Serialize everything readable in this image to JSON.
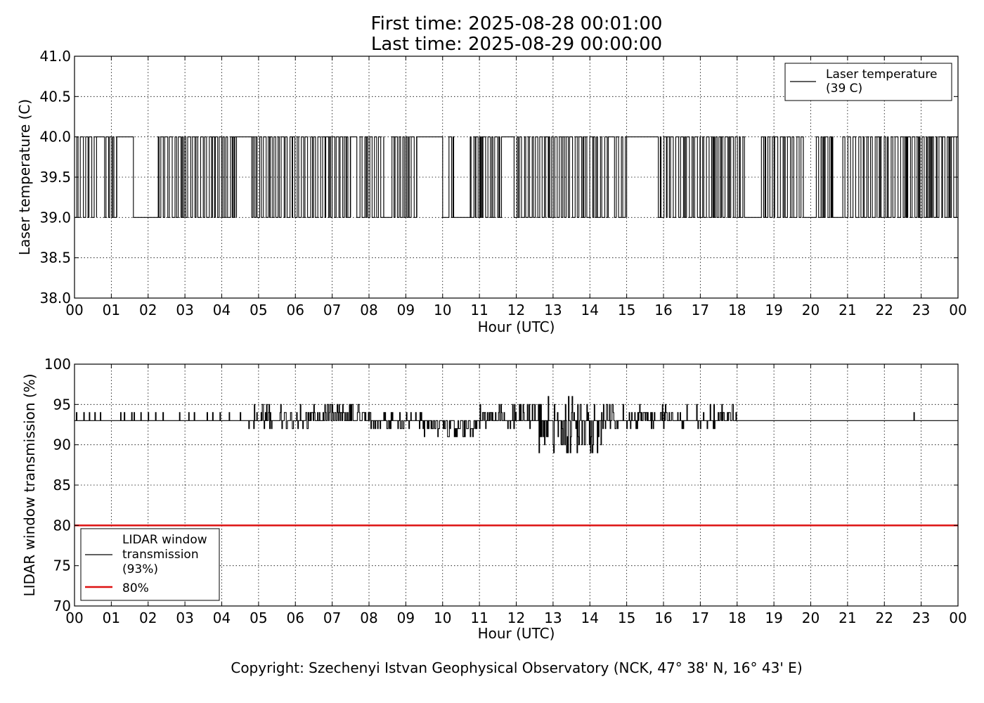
{
  "header": {
    "first_time": "First time: 2025-08-28 00:01:00",
    "last_time": "Last time: 2025-08-29 00:00:00"
  },
  "footer": {
    "copyright": "Copyright: Szechenyi Istvan Geophysical Observatory (NCK, 47° 38' N, 16° 43' E)"
  },
  "colors": {
    "series_line": "#000000",
    "threshold_line": "#dd1111",
    "grid": "#000000"
  },
  "chart_data": [
    {
      "type": "line",
      "xlabel": "Hour (UTC)",
      "ylabel": "Laser temperature (C)",
      "xlim": [
        0,
        24
      ],
      "ylim": [
        38.0,
        41.0
      ],
      "x_ticks": [
        0,
        1,
        2,
        3,
        4,
        5,
        6,
        7,
        8,
        9,
        10,
        11,
        12,
        13,
        14,
        15,
        16,
        17,
        18,
        19,
        20,
        21,
        22,
        23,
        24
      ],
      "x_tick_labels": [
        "00",
        "01",
        "02",
        "03",
        "04",
        "05",
        "06",
        "07",
        "08",
        "09",
        "10",
        "11",
        "12",
        "13",
        "14",
        "15",
        "16",
        "17",
        "18",
        "19",
        "20",
        "21",
        "22",
        "23",
        "00"
      ],
      "y_ticks": [
        38.0,
        38.5,
        39.0,
        39.5,
        40.0,
        40.5,
        41.0
      ],
      "y_tick_labels": [
        "38.0",
        "38.5",
        "39.0",
        "39.5",
        "40.0",
        "40.5",
        "41.0"
      ],
      "grid": true,
      "legend_position": "top-right",
      "series": [
        {
          "name": "Laser temperature (39 C)",
          "legend_lines": [
            "Laser temperature",
            "(39 C)"
          ],
          "levels": [
            39,
            40
          ],
          "dense_toggle_intervals": [
            [
              0.0,
              0.6
            ],
            [
              0.75,
              1.15
            ],
            [
              2.2,
              2.45
            ],
            [
              2.5,
              4.4
            ],
            [
              4.8,
              5.3
            ],
            [
              5.3,
              7.0
            ],
            [
              7.0,
              7.5
            ],
            [
              7.6,
              8.4
            ],
            [
              8.6,
              9.3
            ],
            [
              10.1,
              10.3
            ],
            [
              10.7,
              11.6
            ],
            [
              11.9,
              12.8
            ],
            [
              12.8,
              13.6
            ],
            [
              13.6,
              14.5
            ],
            [
              14.6,
              15.0
            ],
            [
              15.8,
              17.0
            ],
            [
              17.0,
              18.2
            ],
            [
              18.6,
              19.8
            ],
            [
              20.1,
              20.6
            ],
            [
              20.8,
              21.8
            ],
            [
              21.8,
              22.6
            ],
            [
              22.6,
              24.0
            ]
          ],
          "plateaus_at_40": [
            [
              0.6,
              0.75
            ],
            [
              1.15,
              1.6
            ],
            [
              4.4,
              4.8
            ],
            [
              7.5,
              7.6
            ],
            [
              9.3,
              10.0
            ],
            [
              11.6,
              11.9
            ],
            [
              15.0,
              15.8
            ]
          ],
          "plateaus_at_39": [
            [
              1.6,
              2.2
            ],
            [
              8.4,
              8.6
            ],
            [
              10.0,
              10.1
            ],
            [
              18.2,
              18.6
            ],
            [
              19.8,
              20.1
            ],
            [
              20.6,
              20.8
            ]
          ]
        }
      ]
    },
    {
      "type": "line",
      "xlabel": "Hour (UTC)",
      "ylabel": "LIDAR window transmission (%)",
      "xlim": [
        0,
        24
      ],
      "ylim": [
        70,
        100
      ],
      "x_ticks": [
        0,
        1,
        2,
        3,
        4,
        5,
        6,
        7,
        8,
        9,
        10,
        11,
        12,
        13,
        14,
        15,
        16,
        17,
        18,
        19,
        20,
        21,
        22,
        23,
        24
      ],
      "x_tick_labels": [
        "00",
        "01",
        "02",
        "03",
        "04",
        "05",
        "06",
        "07",
        "08",
        "09",
        "10",
        "11",
        "12",
        "13",
        "14",
        "15",
        "16",
        "17",
        "18",
        "19",
        "20",
        "21",
        "22",
        "23",
        "00"
      ],
      "y_ticks": [
        70,
        75,
        80,
        85,
        90,
        95,
        100
      ],
      "y_tick_labels": [
        "70",
        "75",
        "80",
        "85",
        "90",
        "95",
        "100"
      ],
      "grid": true,
      "legend_position": "lower-left",
      "series": [
        {
          "name": "LIDAR window transmission (93%)",
          "legend_lines": [
            "LIDAR window",
            "transmission",
            "(93%)"
          ],
          "baseline": 93,
          "noisy_segments": [
            {
              "from": 4.7,
              "to": 6.4,
              "low": 92,
              "high": 95
            },
            {
              "from": 6.4,
              "to": 7.9,
              "low": 93,
              "high": 95
            },
            {
              "from": 7.9,
              "to": 9.5,
              "low": 92,
              "high": 94
            },
            {
              "from": 9.5,
              "to": 10.9,
              "low": 91,
              "high": 93
            },
            {
              "from": 10.9,
              "to": 12.5,
              "low": 92,
              "high": 95
            },
            {
              "from": 12.5,
              "to": 14.3,
              "low": 89,
              "high": 96
            },
            {
              "from": 14.3,
              "to": 18.0,
              "low": 92,
              "high": 95
            }
          ],
          "spikes": [
            [
              0.05,
              94
            ],
            [
              0.25,
              94
            ],
            [
              0.4,
              94
            ],
            [
              0.55,
              94
            ],
            [
              0.7,
              94
            ],
            [
              1.25,
              94
            ],
            [
              1.35,
              94
            ],
            [
              1.55,
              94
            ],
            [
              1.62,
              94
            ],
            [
              1.8,
              94
            ],
            [
              2.0,
              94
            ],
            [
              2.2,
              94
            ],
            [
              2.4,
              94
            ],
            [
              2.85,
              94
            ],
            [
              3.1,
              94
            ],
            [
              3.25,
              94
            ],
            [
              3.6,
              94
            ],
            [
              3.75,
              94
            ],
            [
              3.95,
              94
            ],
            [
              4.2,
              94
            ],
            [
              4.5,
              94
            ],
            [
              12.62,
              89
            ],
            [
              22.8,
              94
            ]
          ]
        },
        {
          "name": "80%",
          "legend_lines": [
            "80%"
          ],
          "constant": 80
        }
      ]
    }
  ]
}
